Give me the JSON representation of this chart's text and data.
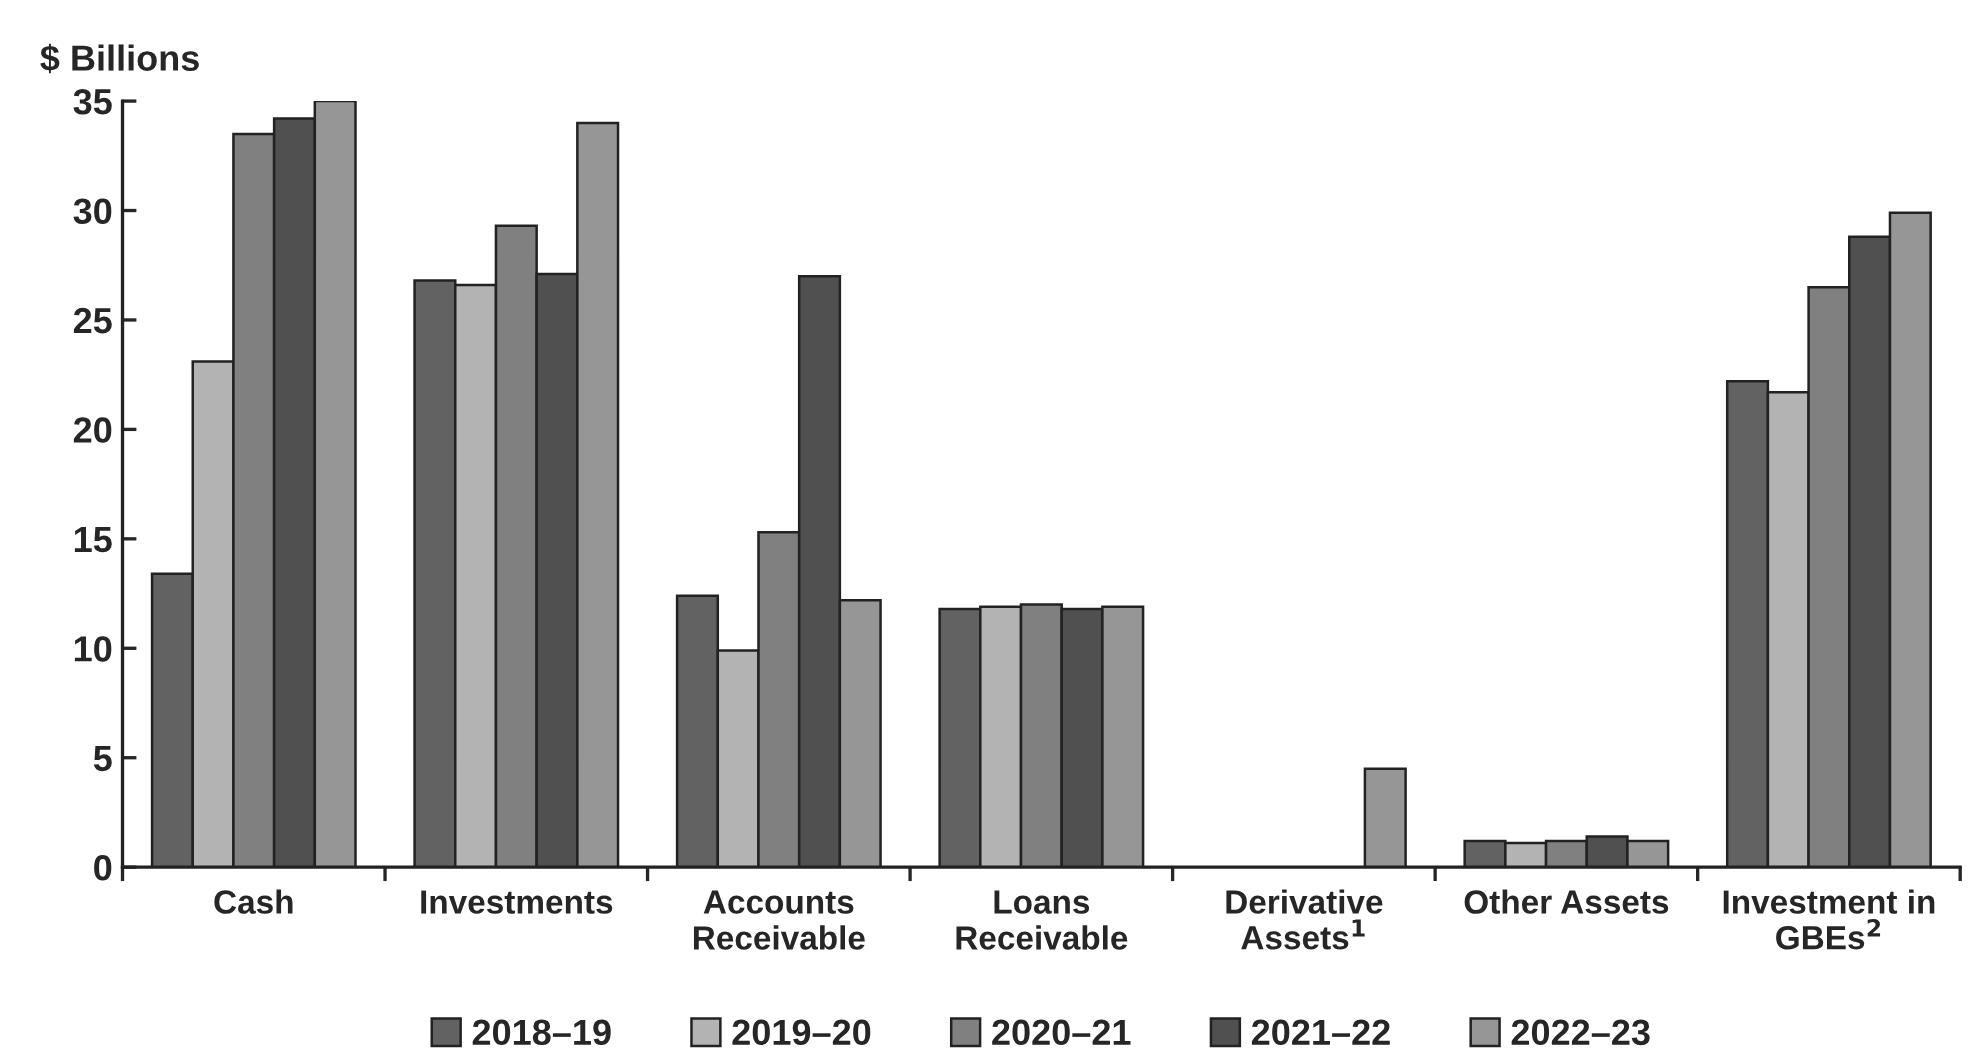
{
  "chart_data": {
    "type": "bar",
    "ylabel": "$ Billions",
    "categories": [
      "Cash",
      "Investments",
      "Accounts\nReceivable",
      "Loans\nReceivable",
      "Derivative\nAssets$^{1}$",
      "Other Assets",
      "Investment in\nGBEs$^{2}$"
    ],
    "series": [
      {
        "name": "2018–19",
        "color": "#626262",
        "values": [
          13.4,
          26.8,
          12.4,
          11.8,
          null,
          1.2,
          22.2
        ]
      },
      {
        "name": "2019–20",
        "color": "#b3b3b3",
        "values": [
          23.1,
          26.6,
          9.9,
          11.9,
          null,
          1.1,
          21.7
        ]
      },
      {
        "name": "2020–21",
        "color": "#808080",
        "values": [
          33.5,
          29.3,
          15.3,
          12.0,
          null,
          1.2,
          26.5
        ]
      },
      {
        "name": "2021–22",
        "color": "#505050",
        "values": [
          34.2,
          27.1,
          27.0,
          11.8,
          null,
          1.4,
          28.8
        ]
      },
      {
        "name": "2022–23",
        "color": "#969696",
        "values": [
          35.0,
          34.0,
          12.2,
          11.9,
          4.5,
          1.2,
          29.9
        ]
      }
    ],
    "ylim": [
      0,
      35
    ],
    "yticks": [
      0,
      5,
      10,
      15,
      20,
      25,
      30,
      35
    ],
    "grid": false,
    "legend": "bottom"
  }
}
